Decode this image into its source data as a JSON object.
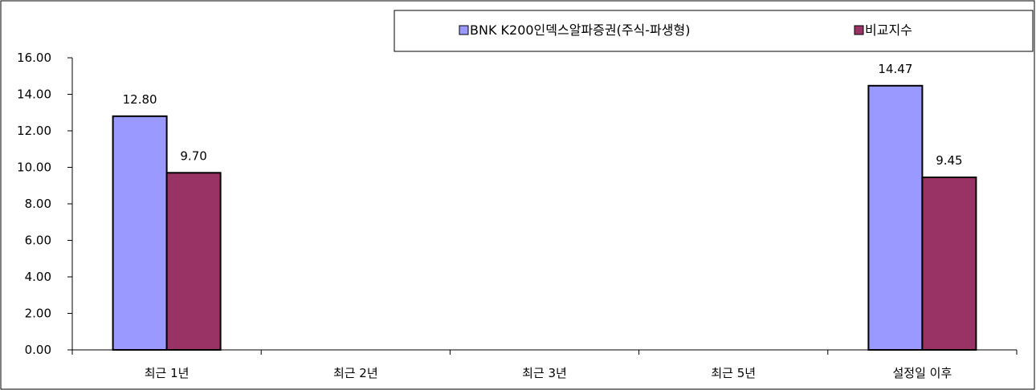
{
  "chart_data": {
    "type": "bar",
    "categories": [
      "최근 1년",
      "최근 2년",
      "최근 3년",
      "최근 5년",
      "설정일 이후"
    ],
    "series": [
      {
        "name": "BNK K200인덱스알파증권(주식-파생형)",
        "values": [
          12.8,
          null,
          null,
          null,
          14.47
        ],
        "labels": [
          "12.80",
          "",
          "",
          "",
          "14.47"
        ],
        "color": "#9999ff"
      },
      {
        "name": "비교지수",
        "values": [
          9.7,
          null,
          null,
          null,
          9.45
        ],
        "labels": [
          "9.70",
          "",
          "",
          "",
          "9.45"
        ],
        "color": "#993366"
      }
    ],
    "yticks": [
      "0.00",
      "2.00",
      "4.00",
      "6.00",
      "8.00",
      "10.00",
      "12.00",
      "14.00",
      "16.00"
    ],
    "ylim": [
      0,
      16
    ],
    "grid": false,
    "legend_position": "top-right"
  }
}
